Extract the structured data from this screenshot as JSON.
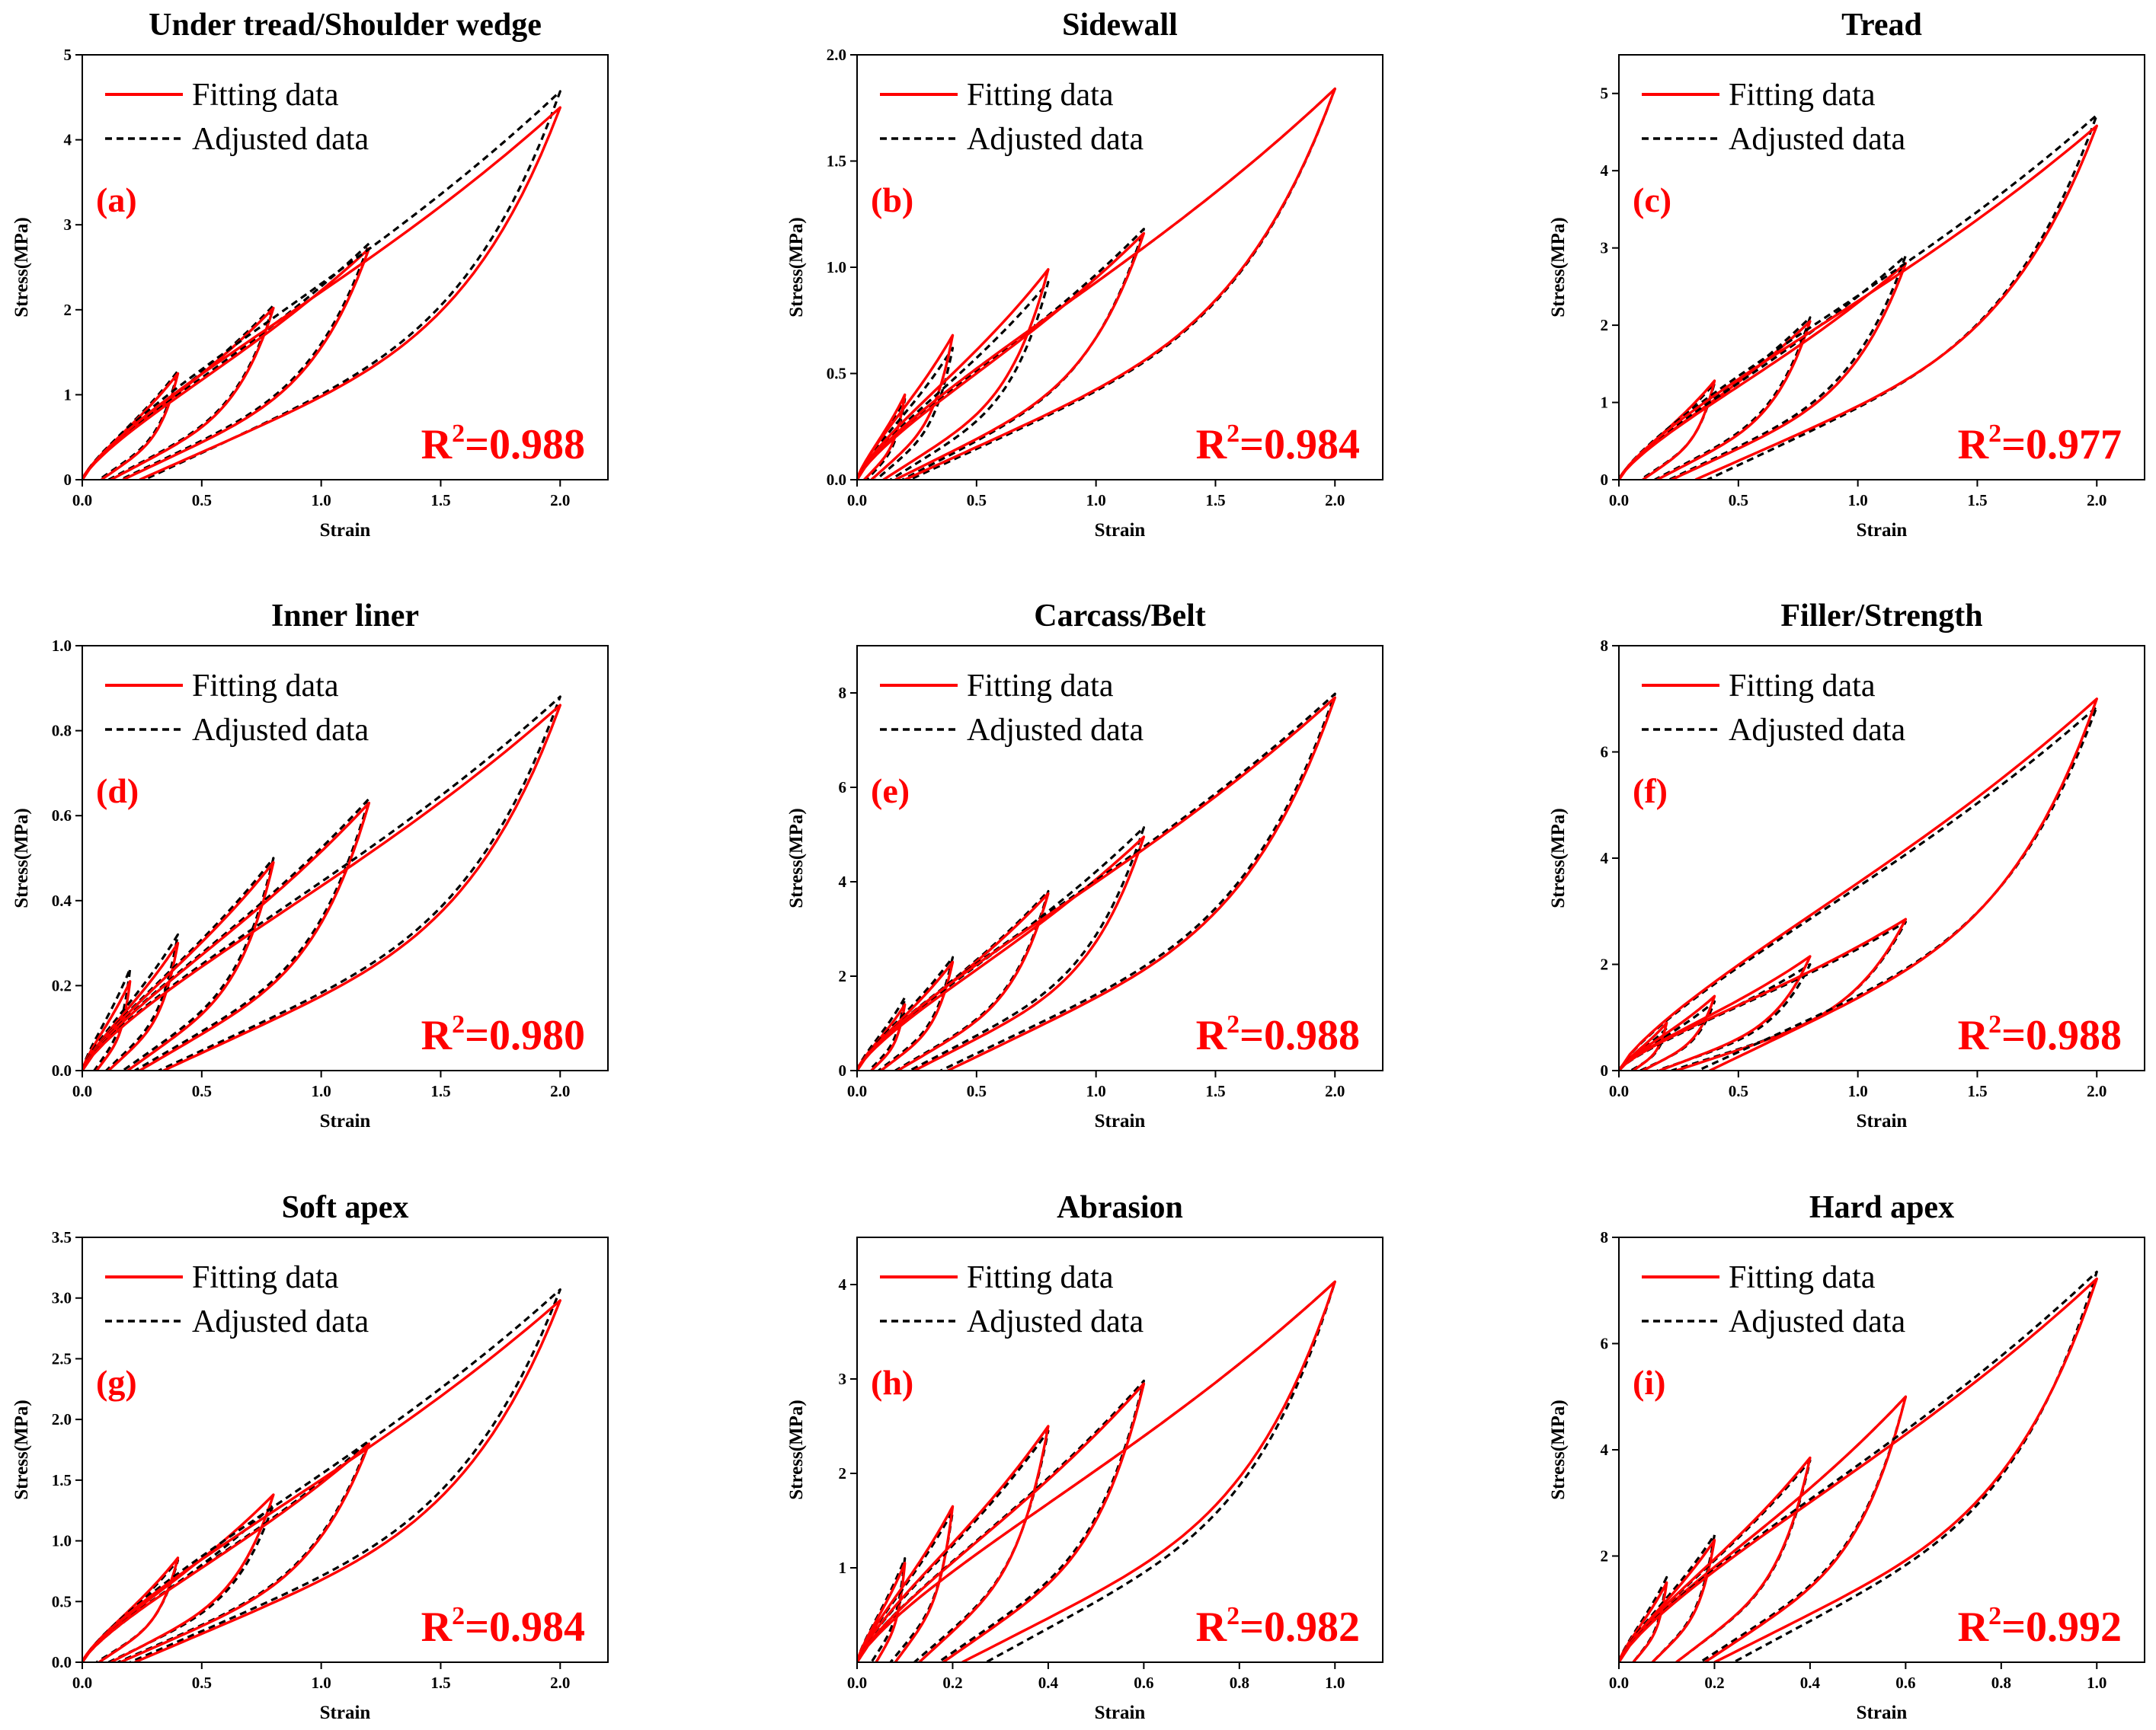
{
  "colors": {
    "fitting": "#ff0000",
    "adjusted": "#000000",
    "accent": "#ff0000"
  },
  "chart_data": [
    {
      "type": "line",
      "label": "(a)",
      "title": "Under tread/Shoulder wedge",
      "xlabel": "Strain",
      "ylabel": "Stress(MPa)",
      "xlim": [
        0,
        2.2
      ],
      "ylim": [
        0,
        5
      ],
      "xticks": [
        "0.0",
        "0.5",
        "1.0",
        "1.5",
        "2.0"
      ],
      "yticks": [
        "0",
        "1",
        "2",
        "3",
        "4",
        "5"
      ],
      "legend": [
        "Fitting data",
        "Adjusted data"
      ],
      "r2_prefix": "R",
      "r2_sup": "2",
      "r2_value": "=0.988",
      "cycles": [
        {
          "max_strain": 0.4,
          "fit_peak": 1.25,
          "adj_peak": 1.28,
          "fit_residual": 0.08,
          "adj_residual": 0.07
        },
        {
          "max_strain": 0.8,
          "fit_peak": 2.02,
          "adj_peak": 2.05,
          "fit_residual": 0.12,
          "adj_residual": 0.11
        },
        {
          "max_strain": 1.2,
          "fit_peak": 2.72,
          "adj_peak": 2.78,
          "fit_residual": 0.17,
          "adj_residual": 0.16
        },
        {
          "max_strain": 2.0,
          "fit_peak": 4.38,
          "adj_peak": 4.57,
          "fit_residual": 0.24,
          "adj_residual": 0.26
        }
      ]
    },
    {
      "type": "line",
      "label": "(b)",
      "title": "Sidewall",
      "xlabel": "Strain",
      "ylabel": "Stress(MPa)",
      "xlim": [
        0,
        2.2
      ],
      "ylim": [
        0,
        2.0
      ],
      "xticks": [
        "0.0",
        "0.5",
        "1.0",
        "1.5",
        "2.0"
      ],
      "yticks": [
        "0.0",
        "0.5",
        "1.0",
        "1.5",
        "2.0"
      ],
      "legend": [
        "Fitting data",
        "Adjusted data"
      ],
      "r2_prefix": "R",
      "r2_sup": "2",
      "r2_value": "=0.984",
      "cycles": [
        {
          "max_strain": 0.2,
          "fit_peak": 0.4,
          "adj_peak": 0.38,
          "fit_residual": 0.03,
          "adj_residual": 0.04
        },
        {
          "max_strain": 0.4,
          "fit_peak": 0.68,
          "adj_peak": 0.62,
          "fit_residual": 0.06,
          "adj_residual": 0.08
        },
        {
          "max_strain": 0.8,
          "fit_peak": 0.99,
          "adj_peak": 0.93,
          "fit_residual": 0.11,
          "adj_residual": 0.14
        },
        {
          "max_strain": 1.2,
          "fit_peak": 1.16,
          "adj_peak": 1.18,
          "fit_residual": 0.16,
          "adj_residual": 0.19
        },
        {
          "max_strain": 2.0,
          "fit_peak": 1.84,
          "adj_peak": 1.84,
          "fit_residual": 0.2,
          "adj_residual": 0.22
        }
      ]
    },
    {
      "type": "line",
      "label": "(c)",
      "title": "Tread",
      "xlabel": "Strain",
      "ylabel": "Stress(MPa)",
      "xlim": [
        0,
        2.2
      ],
      "ylim": [
        0,
        5.5
      ],
      "xticks": [
        "0.0",
        "0.5",
        "1.0",
        "1.5",
        "2.0"
      ],
      "yticks": [
        "0",
        "1",
        "2",
        "3",
        "4",
        "5"
      ],
      "legend": [
        "Fitting data",
        "Adjusted data"
      ],
      "r2_prefix": "R",
      "r2_sup": "2",
      "r2_value": "=0.977",
      "cycles": [
        {
          "max_strain": 0.4,
          "fit_peak": 1.28,
          "adj_peak": 1.25,
          "fit_residual": 0.1,
          "adj_residual": 0.09
        },
        {
          "max_strain": 0.8,
          "fit_peak": 2.05,
          "adj_peak": 2.1,
          "fit_residual": 0.16,
          "adj_residual": 0.15
        },
        {
          "max_strain": 1.2,
          "fit_peak": 2.8,
          "adj_peak": 2.9,
          "fit_residual": 0.22,
          "adj_residual": 0.21
        },
        {
          "max_strain": 2.0,
          "fit_peak": 4.58,
          "adj_peak": 4.72,
          "fit_residual": 0.32,
          "adj_residual": 0.37
        }
      ]
    },
    {
      "type": "line",
      "label": "(d)",
      "title": "Inner liner",
      "xlabel": "Strain",
      "ylabel": "Stress(MPa)",
      "xlim": [
        0,
        2.2
      ],
      "ylim": [
        0,
        1.0
      ],
      "xticks": [
        "0.0",
        "0.5",
        "1.0",
        "1.5",
        "2.0"
      ],
      "yticks": [
        "0.0",
        "0.2",
        "0.4",
        "0.6",
        "0.8",
        "1.0"
      ],
      "legend": [
        "Fitting data",
        "Adjusted data"
      ],
      "r2_prefix": "R",
      "r2_sup": "2",
      "r2_value": "=0.980",
      "cycles": [
        {
          "max_strain": 0.2,
          "fit_peak": 0.21,
          "adj_peak": 0.24,
          "fit_residual": 0.06,
          "adj_residual": 0.05
        },
        {
          "max_strain": 0.4,
          "fit_peak": 0.3,
          "adj_peak": 0.32,
          "fit_residual": 0.11,
          "adj_residual": 0.1
        },
        {
          "max_strain": 0.8,
          "fit_peak": 0.49,
          "adj_peak": 0.5,
          "fit_residual": 0.19,
          "adj_residual": 0.17
        },
        {
          "max_strain": 1.2,
          "fit_peak": 0.63,
          "adj_peak": 0.64,
          "fit_residual": 0.24,
          "adj_residual": 0.22
        },
        {
          "max_strain": 2.0,
          "fit_peak": 0.86,
          "adj_peak": 0.88,
          "fit_residual": 0.34,
          "adj_residual": 0.32
        }
      ]
    },
    {
      "type": "line",
      "label": "(e)",
      "title": "Carcass/Belt",
      "xlabel": "Strain",
      "ylabel": "Stress(MPa)",
      "xlim": [
        0,
        2.2
      ],
      "ylim": [
        0,
        9
      ],
      "xticks": [
        "0.0",
        "0.5",
        "1.0",
        "1.5",
        "2.0"
      ],
      "yticks": [
        "0",
        "2",
        "4",
        "6",
        "8"
      ],
      "legend": [
        "Fitting data",
        "Adjusted data"
      ],
      "r2_prefix": "R",
      "r2_sup": "2",
      "r2_value": "=0.988",
      "cycles": [
        {
          "max_strain": 0.2,
          "fit_peak": 1.4,
          "adj_peak": 1.55,
          "fit_residual": 0.06,
          "adj_residual": 0.05
        },
        {
          "max_strain": 0.4,
          "fit_peak": 2.3,
          "adj_peak": 2.4,
          "fit_residual": 0.1,
          "adj_residual": 0.09
        },
        {
          "max_strain": 0.8,
          "fit_peak": 3.75,
          "adj_peak": 3.8,
          "fit_residual": 0.17,
          "adj_residual": 0.16
        },
        {
          "max_strain": 1.2,
          "fit_peak": 4.95,
          "adj_peak": 5.15,
          "fit_residual": 0.24,
          "adj_residual": 0.22
        },
        {
          "max_strain": 2.0,
          "fit_peak": 7.9,
          "adj_peak": 7.98,
          "fit_residual": 0.38,
          "adj_residual": 0.35
        }
      ]
    },
    {
      "type": "line",
      "label": "(f)",
      "title": "Filler/Strength",
      "xlabel": "Strain",
      "ylabel": "Stress(MPa)",
      "xlim": [
        0,
        2.2
      ],
      "ylim": [
        0,
        8
      ],
      "xticks": [
        "0.0",
        "0.5",
        "1.0",
        "1.5",
        "2.0"
      ],
      "yticks": [
        "0",
        "2",
        "4",
        "6",
        "8"
      ],
      "legend": [
        "Fitting data",
        "Adjusted data"
      ],
      "r2_prefix": "R",
      "r2_sup": "2",
      "r2_value": "=0.988",
      "cycles": [
        {
          "max_strain": 0.2,
          "fit_peak": 0.9,
          "adj_peak": 0.8,
          "fit_residual": 0.06,
          "adj_residual": 0.05
        },
        {
          "max_strain": 0.4,
          "fit_peak": 1.4,
          "adj_peak": 1.3,
          "fit_residual": 0.1,
          "adj_residual": 0.09
        },
        {
          "max_strain": 0.8,
          "fit_peak": 2.15,
          "adj_peak": 2.0,
          "fit_residual": 0.17,
          "adj_residual": 0.16
        },
        {
          "max_strain": 1.2,
          "fit_peak": 2.85,
          "adj_peak": 2.8,
          "fit_residual": 0.24,
          "adj_residual": 0.22
        },
        {
          "max_strain": 2.0,
          "fit_peak": 7.0,
          "adj_peak": 6.85,
          "fit_residual": 0.38,
          "adj_residual": 0.33
        }
      ]
    },
    {
      "type": "line",
      "label": "(g)",
      "title": "Soft apex",
      "xlabel": "Strain",
      "ylabel": "Stress(MPa)",
      "xlim": [
        0,
        2.2
      ],
      "ylim": [
        0,
        3.5
      ],
      "xticks": [
        "0.0",
        "0.5",
        "1.0",
        "1.5",
        "2.0"
      ],
      "yticks": [
        "0.0",
        "0.5",
        "1.0",
        "1.5",
        "2.0",
        "2.5",
        "3.0",
        "3.5"
      ],
      "legend": [
        "Fitting data",
        "Adjusted data"
      ],
      "r2_prefix": "R",
      "r2_sup": "2",
      "r2_value": "=0.984",
      "cycles": [
        {
          "max_strain": 0.4,
          "fit_peak": 0.86,
          "adj_peak": 0.84,
          "fit_residual": 0.07,
          "adj_residual": 0.06
        },
        {
          "max_strain": 0.8,
          "fit_peak": 1.38,
          "adj_peak": 1.3,
          "fit_residual": 0.12,
          "adj_residual": 0.11
        },
        {
          "max_strain": 1.2,
          "fit_peak": 1.8,
          "adj_peak": 1.82,
          "fit_residual": 0.16,
          "adj_residual": 0.15
        },
        {
          "max_strain": 2.0,
          "fit_peak": 2.98,
          "adj_peak": 3.07,
          "fit_residual": 0.22,
          "adj_residual": 0.2
        }
      ]
    },
    {
      "type": "line",
      "label": "(h)",
      "title": "Abrasion",
      "xlabel": "Strain",
      "ylabel": "Stress(MPa)",
      "xlim": [
        0,
        1.1
      ],
      "ylim": [
        0,
        4.5
      ],
      "xticks": [
        "0.0",
        "0.2",
        "0.4",
        "0.6",
        "0.8",
        "1.0"
      ],
      "yticks": [
        "1",
        "2",
        "3",
        "4"
      ],
      "legend": [
        "Fitting data",
        "Adjusted data"
      ],
      "r2_prefix": "R",
      "r2_sup": "2",
      "r2_value": "=0.982",
      "cycles": [
        {
          "max_strain": 0.1,
          "fit_peak": 1.05,
          "adj_peak": 1.1,
          "fit_residual": 0.04,
          "adj_residual": 0.03
        },
        {
          "max_strain": 0.2,
          "fit_peak": 1.65,
          "adj_peak": 1.6,
          "fit_residual": 0.08,
          "adj_residual": 0.07
        },
        {
          "max_strain": 0.4,
          "fit_peak": 2.5,
          "adj_peak": 2.45,
          "fit_residual": 0.13,
          "adj_residual": 0.12
        },
        {
          "max_strain": 0.6,
          "fit_peak": 2.95,
          "adj_peak": 2.98,
          "fit_residual": 0.18,
          "adj_residual": 0.17
        },
        {
          "max_strain": 1.0,
          "fit_peak": 4.03,
          "adj_peak": 4.03,
          "fit_residual": 0.22,
          "adj_residual": 0.27
        }
      ]
    },
    {
      "type": "line",
      "label": "(i)",
      "title": "Hard apex",
      "xlabel": "Strain",
      "ylabel": "Stress(MPa)",
      "xlim": [
        0,
        1.1
      ],
      "ylim": [
        0,
        8
      ],
      "xticks": [
        "0.0",
        "0.2",
        "0.4",
        "0.6",
        "0.8",
        "1.0"
      ],
      "yticks": [
        "2",
        "4",
        "6",
        "8"
      ],
      "legend": [
        "Fitting data",
        "Adjusted data"
      ],
      "r2_prefix": "R",
      "r2_sup": "2",
      "r2_value": "=0.992",
      "cycles": [
        {
          "max_strain": 0.1,
          "fit_peak": 1.5,
          "adj_peak": 1.6,
          "fit_residual": 0.03,
          "adj_residual": 0.03
        },
        {
          "max_strain": 0.2,
          "fit_peak": 2.3,
          "adj_peak": 2.4,
          "fit_residual": 0.07,
          "adj_residual": 0.07
        },
        {
          "max_strain": 0.4,
          "fit_peak": 3.85,
          "adj_peak": 3.8,
          "fit_residual": 0.12,
          "adj_residual": 0.12
        },
        {
          "max_strain": 0.6,
          "fit_peak": 5.0,
          "adj_peak": 5.0,
          "fit_residual": 0.18,
          "adj_residual": 0.17
        },
        {
          "max_strain": 1.0,
          "fit_peak": 7.22,
          "adj_peak": 7.35,
          "fit_residual": 0.2,
          "adj_residual": 0.24
        }
      ]
    }
  ]
}
